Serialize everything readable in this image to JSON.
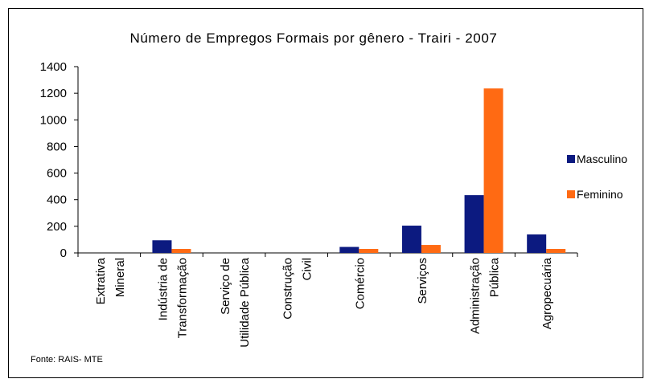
{
  "chart_data": {
    "type": "bar",
    "title": "Número de Empregos Formais por gênero - Trairi - 2007",
    "source": "Fonte: RAIS- MTE",
    "categories": [
      [
        "Extrativa",
        "Mineral"
      ],
      [
        "Indústria de",
        "Transformação"
      ],
      [
        "Serviço de",
        "Utilidade Pública"
      ],
      [
        "Construção",
        "Civil"
      ],
      [
        "Comércio"
      ],
      [
        "Serviços"
      ],
      [
        "Administração",
        "Pública"
      ],
      [
        "Agropecuária"
      ]
    ],
    "series": [
      {
        "name": "Masculino",
        "color": "#0c1a80",
        "values": [
          0,
          95,
          0,
          0,
          45,
          205,
          434,
          139
        ]
      },
      {
        "name": "Feminino",
        "color": "#ff6a13",
        "values": [
          0,
          30,
          0,
          0,
          30,
          60,
          1236,
          30
        ]
      }
    ],
    "ylim": [
      0,
      1400
    ],
    "yticks": [
      0,
      200,
      400,
      600,
      800,
      1000,
      1200,
      1400
    ],
    "grid": false,
    "legend": "right"
  }
}
